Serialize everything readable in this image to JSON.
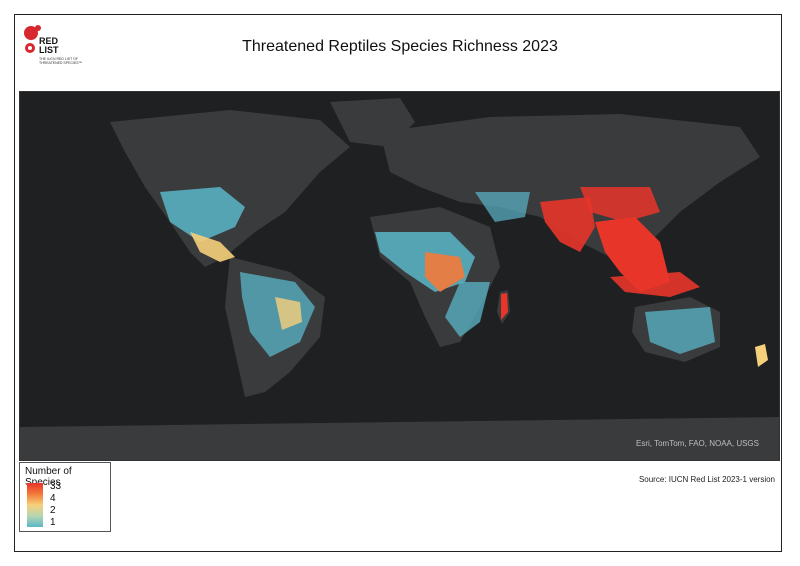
{
  "title": "Threatened Reptiles Species Richness 2023",
  "logo": {
    "line1": "RED",
    "line2": "LIST",
    "sub": "THE IUCN RED LIST OF THREATENED SPECIES™"
  },
  "map": {
    "credit": "Esri, TomTom, FAO, NOAA, USGS",
    "background": "#1f2022",
    "land": "#3a3b3d"
  },
  "legend": {
    "title": "Number of Species",
    "labels": [
      "33",
      "4",
      "2",
      "1"
    ],
    "colors": [
      "#e8352a",
      "#f6d07a",
      "#b6d6b0",
      "#5bb7c9"
    ]
  },
  "source": "Source: IUCN Red List 2023-1 version"
}
